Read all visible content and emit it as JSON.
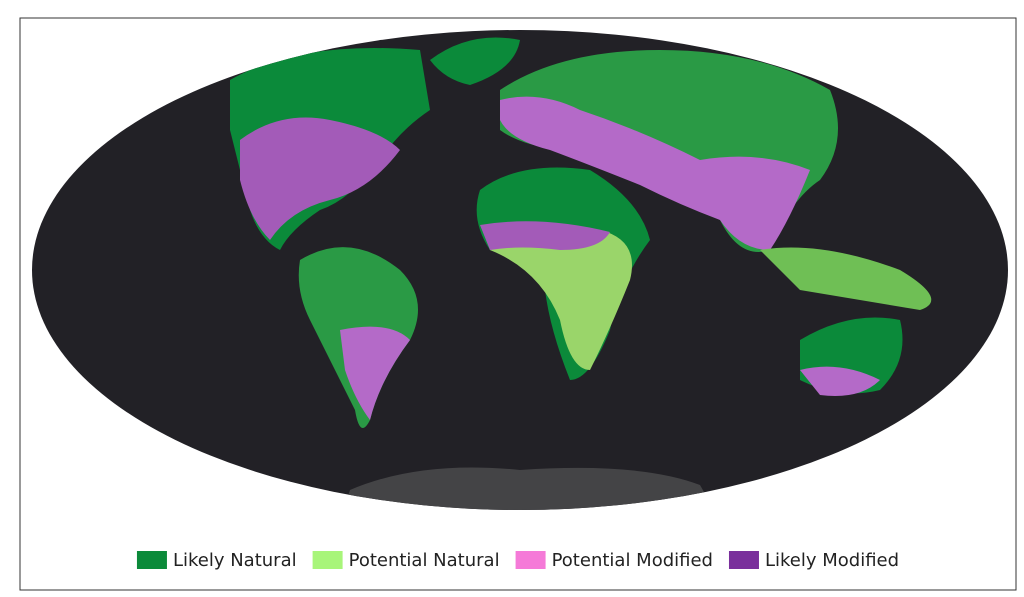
{
  "legend": {
    "items": [
      {
        "name": "Likely Natural",
        "color": "#0b8a3a"
      },
      {
        "name": "Potential Natural",
        "color": "#a8f57a"
      },
      {
        "name": "Potential Modified",
        "color": "#f57ad8"
      },
      {
        "name": "Likely Modified",
        "color": "#7a2f9c"
      }
    ]
  }
}
